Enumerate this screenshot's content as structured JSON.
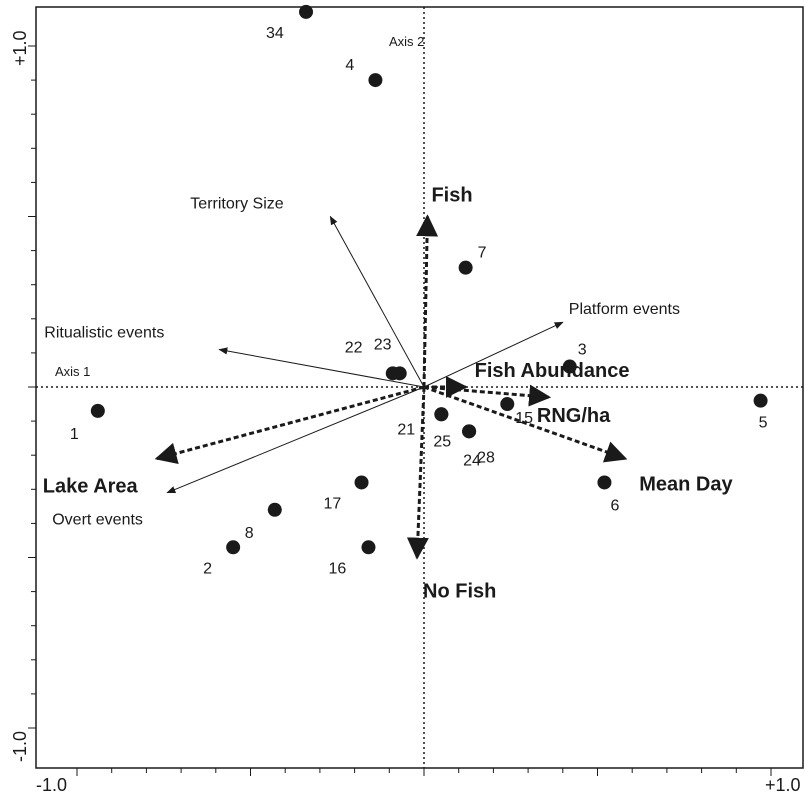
{
  "chart_data": {
    "type": "scatter",
    "subtype": "ordination-biplot",
    "xlim": [
      -1.0,
      1.0
    ],
    "ylim": [
      -1.0,
      1.0
    ],
    "x_tick_labels": [
      "-1.0",
      "+1.0"
    ],
    "y_tick_labels": [
      "+1.0",
      "-1.0"
    ],
    "axis_names": {
      "x": "Axis 1",
      "y": "Axis 2"
    },
    "grid": false,
    "sites": [
      {
        "label": "34",
        "x": -0.34,
        "y": 1.1
      },
      {
        "label": "4",
        "x": -0.14,
        "y": 0.9
      },
      {
        "label": "7",
        "x": 0.12,
        "y": 0.35
      },
      {
        "label": "3",
        "x": 0.42,
        "y": 0.06
      },
      {
        "label": "22",
        "x": -0.09,
        "y": 0.04
      },
      {
        "label": "23",
        "x": -0.07,
        "y": 0.04
      },
      {
        "label": "1",
        "x": -0.94,
        "y": -0.07
      },
      {
        "label": "15",
        "x": 0.24,
        "y": -0.05
      },
      {
        "label": "5",
        "x": 0.97,
        "y": -0.04
      },
      {
        "label": "21",
        "x": 0.05,
        "y": -0.08
      },
      {
        "label": "25",
        "x": 0.05,
        "y": -0.08
      },
      {
        "label": "24",
        "x": 0.13,
        "y": -0.13
      },
      {
        "label": "28",
        "x": 0.13,
        "y": -0.13
      },
      {
        "label": "17",
        "x": -0.18,
        "y": -0.28
      },
      {
        "label": "6",
        "x": 0.52,
        "y": -0.28
      },
      {
        "label": "8",
        "x": -0.43,
        "y": -0.36
      },
      {
        "label": "2",
        "x": -0.55,
        "y": -0.47
      },
      {
        "label": "16",
        "x": -0.16,
        "y": -0.47
      }
    ],
    "behaviour_vectors": [
      {
        "name": "Territory Size",
        "x": -0.27,
        "y": 0.5
      },
      {
        "name": "Platform events",
        "x": 0.4,
        "y": 0.19
      },
      {
        "name": "Ritualistic events",
        "x": -0.59,
        "y": 0.11
      },
      {
        "name": "Overt events",
        "x": -0.74,
        "y": -0.31
      }
    ],
    "environment_vectors": [
      {
        "name": "Fish",
        "x": 0.01,
        "y": 0.5
      },
      {
        "name": "Fish Abundance",
        "x": 0.12,
        "y": 0.0
      },
      {
        "name": "RNG/ha",
        "x": 0.36,
        "y": -0.03
      },
      {
        "name": "Mean Day",
        "x": 0.58,
        "y": -0.21
      },
      {
        "name": "Lake Area",
        "x": -0.77,
        "y": -0.21
      },
      {
        "name": "No Fish",
        "x": -0.02,
        "y": -0.5
      }
    ]
  }
}
